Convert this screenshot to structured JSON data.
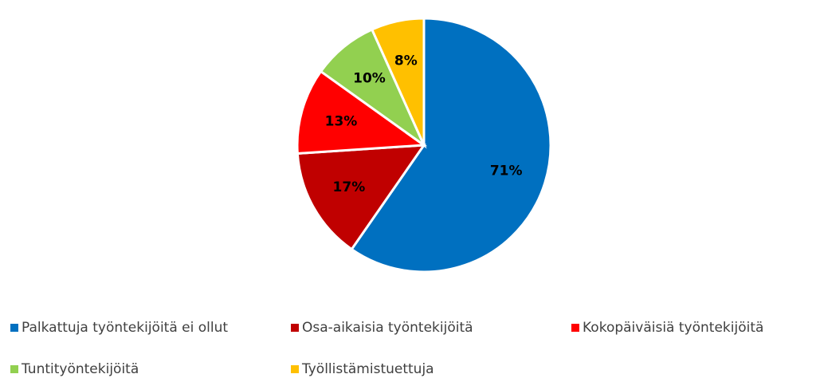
{
  "chart_data": {
    "type": "pie",
    "categories": [
      "Palkattuja työntekijöitä ei ollut",
      "Osa-aikaisia työntekijöitä",
      "Kokopäiväisiä työntekijöitä",
      "Tuntityöntekijöitä",
      "Työllistämistuettuja"
    ],
    "values": [
      71,
      17,
      13,
      10,
      8
    ],
    "value_labels": [
      "71%",
      "17%",
      "13%",
      "10%",
      "8%"
    ],
    "colors": [
      "#0070c0",
      "#c00000",
      "#ff0000",
      "#92d050",
      "#ffc000"
    ],
    "legend": "bottom"
  }
}
